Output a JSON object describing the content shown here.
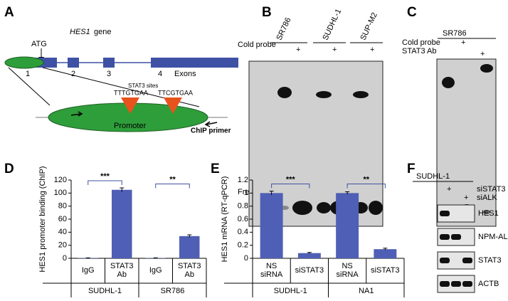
{
  "panel_a": {
    "label": "A",
    "gene": "HES1",
    "gene_suffix": "gene",
    "atg": "ATG",
    "exons": [
      "1",
      "2",
      "3",
      "4"
    ],
    "exons_label": "Exons",
    "sites_label": "STAT3 sites",
    "sites": [
      "TTTGTGAA",
      "TTCGTGAA"
    ],
    "promoter": "Promoter",
    "primer": "ChIP primer"
  },
  "panel_b": {
    "label": "B",
    "lanes": [
      "SR786",
      "SUDHL-1",
      "SUP-M2"
    ],
    "cold_probe": "Cold probe",
    "plus": "+",
    "free_probe": "Free probe"
  },
  "panel_c": {
    "label": "C",
    "cell": "SR786",
    "rows": [
      "Cold probe",
      "STAT3 Ab"
    ],
    "plus": "+"
  },
  "panel_f": {
    "label": "F",
    "cell": "SUDHL-1",
    "rows": [
      "siSTAT3",
      "siALK"
    ],
    "plus": "+",
    "blots": [
      "HES1",
      "NPM-ALK",
      "STAT3",
      "ACTB"
    ]
  },
  "chart_data": [
    {
      "type": "bar",
      "label": "D",
      "ylabel": "HES1 promoter binding (ChIP)",
      "categories": [
        "IgG",
        "STAT3 Ab",
        "IgG",
        "STAT3 Ab"
      ],
      "groups": [
        "SUDHL-1",
        "SR786"
      ],
      "values": [
        0.5,
        105,
        0.5,
        34
      ],
      "errors": [
        0.2,
        3,
        0.2,
        2
      ],
      "significance": [
        "***",
        "**"
      ],
      "color": "#4f5fb5",
      "ylim": [
        0,
        120
      ],
      "yticks": [
        0,
        20,
        40,
        60,
        80,
        100,
        120
      ]
    },
    {
      "type": "bar",
      "label": "E",
      "ylabel": "HES1 mRNA (RT-qPCR)",
      "categories": [
        "NS siRNA",
        "siSTAT3",
        "NS siRNA",
        "siSTAT3"
      ],
      "groups": [
        "SUDHL-1",
        "NA1"
      ],
      "values": [
        1,
        0.08,
        1,
        0.14
      ],
      "errors": [
        0.03,
        0.01,
        0.02,
        0.015
      ],
      "significance": [
        "***",
        "**"
      ],
      "color": "#4f5fb5",
      "ylim": [
        0,
        1.2
      ],
      "yticks": [
        0,
        0.2,
        0.4,
        0.6,
        0.8,
        1,
        1.2
      ]
    }
  ]
}
